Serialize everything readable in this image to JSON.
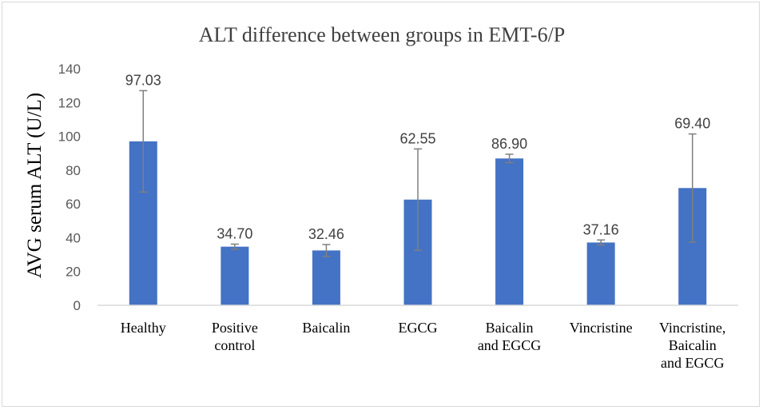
{
  "chart_data": {
    "type": "bar",
    "title": "ALT difference between groups in EMT-6/P",
    "xlabel": "",
    "ylabel": "AVG serum ALT (U/L)",
    "ylim": [
      0,
      140
    ],
    "yticks": [
      0,
      20,
      40,
      60,
      80,
      100,
      120,
      140
    ],
    "grid": false,
    "legend": "none",
    "categories": [
      [
        "Healthy"
      ],
      [
        "Positive",
        "control"
      ],
      [
        "Baicalin"
      ],
      [
        "EGCG"
      ],
      [
        "Baicalin",
        "and EGCG"
      ],
      [
        "Vincristine"
      ],
      [
        "Vincristine,",
        "Baicalin",
        "and EGCG"
      ]
    ],
    "values": [
      97.03,
      34.7,
      32.46,
      62.55,
      86.9,
      37.16,
      69.4
    ],
    "data_labels": [
      "97.03",
      "34.70",
      "32.46",
      "62.55",
      "86.90",
      "37.16",
      "69.40"
    ],
    "error_plus_minus": [
      30,
      1.5,
      3.5,
      30,
      2.5,
      1.5,
      32
    ],
    "colors": {
      "bar": "#4472c4",
      "error_bar": "#7f7f7f",
      "axis": "#d9d9d9"
    }
  }
}
